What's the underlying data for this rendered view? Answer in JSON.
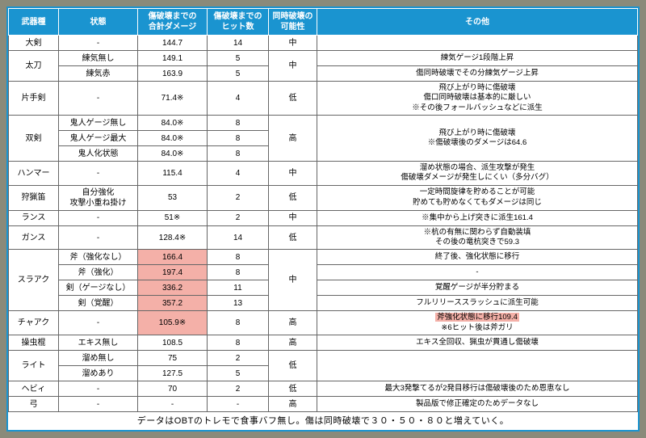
{
  "colors": {
    "header_bg": "#1a94d0",
    "header_fg": "#ffffff",
    "border": "#666666",
    "highlight_bg": "#f4b0a8",
    "sheet_bg": "#ffffff",
    "page_bg": "#8a8a7a"
  },
  "headers": {
    "c1": "武器種",
    "c2": "状態",
    "c3": "傷破壊までの\n合計ダメージ",
    "c4": "傷破壊までの\nヒット数",
    "c5": "同時破壊の\n可能性",
    "c6": "その他"
  },
  "rows": [
    {
      "weapon": "大剣",
      "wspan": 1,
      "state": "-",
      "dmg": "144.7",
      "hits": "14",
      "simul": "中",
      "sspan": 1,
      "note": "",
      "nspan": 1
    },
    {
      "weapon": "太刀",
      "wspan": 2,
      "state": "練気無し",
      "dmg": "149.1",
      "hits": "5",
      "simul": "中",
      "sspan": 2,
      "note": "練気ゲージ1段階上昇",
      "nspan": 1
    },
    {
      "state": "練気赤",
      "dmg": "163.9",
      "hits": "5",
      "note": "傷同時破壊でその分練気ゲージ上昇",
      "nspan": 1
    },
    {
      "weapon": "片手剣",
      "wspan": 1,
      "state": "-",
      "dmg": "71.4※",
      "hits": "4",
      "simul": "低",
      "sspan": 1,
      "note": "飛び上がり時に傷破壊\n傷口同時破壊は基本的に厳しい\n※その後フォールバッシュなどに派生",
      "nspan": 1
    },
    {
      "weapon": "双剣",
      "wspan": 3,
      "state": "鬼人ゲージ無し",
      "dmg": "84.0※",
      "hits": "8",
      "simul": "高",
      "sspan": 3,
      "note": "飛び上がり時に傷破壊\n※傷破壊後のダメージは64.6",
      "nspan": 3
    },
    {
      "state": "鬼人ゲージ最大",
      "dmg": "84.0※",
      "hits": "8"
    },
    {
      "state": "鬼人化状態",
      "dmg": "84.0※",
      "hits": "8"
    },
    {
      "weapon": "ハンマー",
      "wspan": 1,
      "state": "-",
      "dmg": "115.4",
      "hits": "4",
      "simul": "中",
      "sspan": 1,
      "note": "溜め状態の場合、派生攻撃が発生\n傷破壊ダメージが発生しにくい（多分バグ）",
      "nspan": 1
    },
    {
      "weapon": "狩猟笛",
      "wspan": 1,
      "state": "自分強化\n攻撃小重ね掛け",
      "dmg": "53",
      "hits": "2",
      "simul": "低",
      "sspan": 1,
      "note": "一定時間旋律を貯めることが可能\n貯めても貯めなくてもダメージは同じ",
      "nspan": 1
    },
    {
      "weapon": "ランス",
      "wspan": 1,
      "state": "-",
      "dmg": "51※",
      "hits": "2",
      "simul": "中",
      "sspan": 1,
      "note": "※集中から上げ突きに派生161.4",
      "nspan": 1
    },
    {
      "weapon": "ガンス",
      "wspan": 1,
      "state": "-",
      "dmg": "128.4※",
      "hits": "14",
      "simul": "低",
      "sspan": 1,
      "note": "※杭の有無に関わらず自動装填\nその後の竜杭突きで59.3",
      "nspan": 1
    },
    {
      "weapon": "スラアク",
      "wspan": 4,
      "state": "斧（強化なし）",
      "dmg": "166.4",
      "dmg_hl": true,
      "hits": "8",
      "simul": "中",
      "sspan": 4,
      "note": "終了後、強化状態に移行",
      "nspan": 1
    },
    {
      "state": "斧（強化）",
      "dmg": "197.4",
      "dmg_hl": true,
      "hits": "8",
      "note": "-",
      "nspan": 1
    },
    {
      "state": "剣（ゲージなし）",
      "dmg": "336.2",
      "dmg_hl": true,
      "hits": "11",
      "note": "覚醒ゲージが半分貯まる",
      "nspan": 1
    },
    {
      "state": "剣（覚醒）",
      "dmg": "357.2",
      "dmg_hl": true,
      "hits": "13",
      "note": "フルリリーススラッシュに派生可能",
      "nspan": 1
    },
    {
      "weapon": "チャアク",
      "wspan": 1,
      "state": "-",
      "dmg": "105.9※",
      "dmg_hl": true,
      "hits": "8",
      "simul": "高",
      "sspan": 1,
      "note": "斧強化状態に移行109.4\n※6ヒット後は斧ガリ",
      "note_hl": true,
      "nspan": 1
    },
    {
      "weapon": "操虫棍",
      "wspan": 1,
      "state": "エキス無し",
      "dmg": "108.5",
      "hits": "8",
      "simul": "高",
      "sspan": 1,
      "note": "エキス全回収、猟虫が貫通し傷破壊",
      "nspan": 1
    },
    {
      "weapon": "ライト",
      "wspan": 2,
      "state": "溜め無し",
      "dmg": "75",
      "hits": "2",
      "simul": "低",
      "sspan": 2,
      "note": "",
      "nspan": 2
    },
    {
      "state": "溜めあり",
      "dmg": "127.5",
      "hits": "5"
    },
    {
      "weapon": "ヘビィ",
      "wspan": 1,
      "state": "-",
      "dmg": "70",
      "hits": "2",
      "simul": "低",
      "sspan": 1,
      "note": "最大3発撃てるが2発目移行は傷破壊後のため恩恵なし",
      "nspan": 1
    },
    {
      "weapon": "弓",
      "wspan": 1,
      "state": "-",
      "dmg": "-",
      "hits": "-",
      "simul": "高",
      "sspan": 1,
      "note": "製品版で修正確定のためデータなし",
      "nspan": 1
    }
  ],
  "footer": "データはOBTのトレモで食事バフ無し。傷は同時破壊で３０・５０・８０と増えていく。"
}
